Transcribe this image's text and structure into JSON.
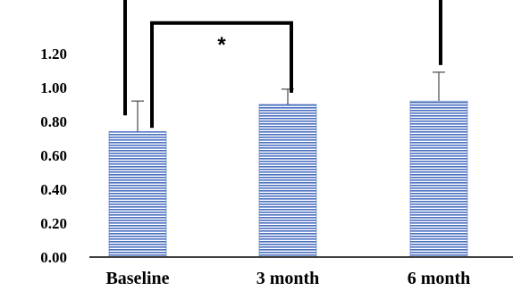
{
  "chart_data": {
    "type": "bar",
    "categories": [
      "Baseline",
      "3 month",
      "6 month"
    ],
    "values": [
      0.74,
      0.9,
      0.92
    ],
    "error_upper": [
      0.92,
      0.99,
      1.09
    ],
    "ylim": [
      0,
      1.2
    ],
    "yticks": [
      "0.00",
      "0.20",
      "0.40",
      "0.60",
      "0.80",
      "1.00",
      "1.20"
    ],
    "bar_fill": "#4a6fc0",
    "significance": [
      {
        "from": "Baseline",
        "to": "3 month",
        "label": "*",
        "level": 1.38
      },
      {
        "from": "Baseline",
        "to": "6 month",
        "label": ",",
        "level": 1.6
      }
    ],
    "grid": false,
    "legend": "none"
  }
}
